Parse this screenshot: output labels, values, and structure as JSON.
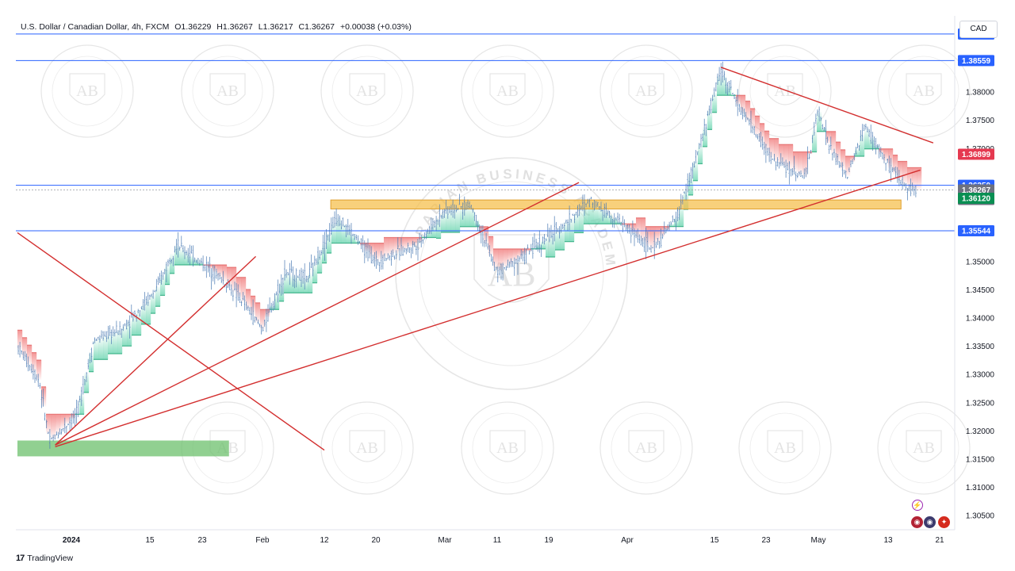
{
  "header": {
    "symbol": "U.S. Dollar / Canadian Dollar, 4h, FXCM",
    "open": "O1.36229",
    "high": "H1.36267",
    "low": "L1.36217",
    "close": "C1.36267",
    "change": "+0.00038 (+0.03%)"
  },
  "currency_button": "CAD",
  "footer": {
    "logo": "17",
    "brand": "TradingView"
  },
  "watermark": {
    "text": "ARABIAN BUSINESS ACADEMY",
    "initials": "AB"
  },
  "colors": {
    "level_line": "#2962ff",
    "trendline": "#d32f2f",
    "support_zone": "#6cc06c",
    "resistance_zone": "#f6c04f",
    "candle": "#4a7ab3",
    "cloud_up": "#7ad9b8",
    "cloud_down": "#f28a8a",
    "price_label_blue": "#2962ff",
    "price_label_red": "#e53950",
    "price_label_green": "#0a8f53",
    "price_label_gray": "#6d7180"
  },
  "chart_data": {
    "type": "line",
    "title": "U.S. Dollar / Canadian Dollar, 4h, FXCM",
    "timeframe": "4h",
    "yscale": "linear",
    "ylim": [
      1.3025,
      1.3935
    ],
    "grid": false,
    "x_ticks": [
      "2024",
      "15",
      "23",
      "Feb",
      "12",
      "20",
      "Mar",
      "11",
      "19",
      "Apr",
      "15",
      "23",
      "May",
      "13",
      "21"
    ],
    "y_ticks": [
      "1.38000",
      "1.37500",
      "1.37000",
      "1.35000",
      "1.34500",
      "1.34000",
      "1.33500",
      "1.33000",
      "1.32500",
      "1.32000",
      "1.31500",
      "1.31000",
      "1.30500"
    ],
    "price_path": [
      {
        "date": "2023-12-22",
        "close": 1.335
      },
      {
        "date": "2023-12-26",
        "close": 1.329
      },
      {
        "date": "2023-12-28",
        "close": 1.318
      },
      {
        "date": "2024-01-02",
        "close": 1.323
      },
      {
        "date": "2024-01-05",
        "close": 1.336
      },
      {
        "date": "2024-01-10",
        "close": 1.338
      },
      {
        "date": "2024-01-16",
        "close": 1.345
      },
      {
        "date": "2024-01-19",
        "close": 1.353
      },
      {
        "date": "2024-01-25",
        "close": 1.348
      },
      {
        "date": "2024-01-29",
        "close": 1.343
      },
      {
        "date": "2024-02-01",
        "close": 1.338
      },
      {
        "date": "2024-02-05",
        "close": 1.348
      },
      {
        "date": "2024-02-09",
        "close": 1.347
      },
      {
        "date": "2024-02-14",
        "close": 1.358
      },
      {
        "date": "2024-02-20",
        "close": 1.35
      },
      {
        "date": "2024-02-26",
        "close": 1.353
      },
      {
        "date": "2024-03-01",
        "close": 1.359
      },
      {
        "date": "2024-03-06",
        "close": 1.36
      },
      {
        "date": "2024-03-11",
        "close": 1.348
      },
      {
        "date": "2024-03-15",
        "close": 1.351
      },
      {
        "date": "2024-03-21",
        "close": 1.356
      },
      {
        "date": "2024-03-26",
        "close": 1.361
      },
      {
        "date": "2024-04-01",
        "close": 1.356
      },
      {
        "date": "2024-04-05",
        "close": 1.352
      },
      {
        "date": "2024-04-09",
        "close": 1.358
      },
      {
        "date": "2024-04-12",
        "close": 1.368
      },
      {
        "date": "2024-04-16",
        "close": 1.384
      },
      {
        "date": "2024-04-19",
        "close": 1.377
      },
      {
        "date": "2024-04-24",
        "close": 1.368
      },
      {
        "date": "2024-04-29",
        "close": 1.365
      },
      {
        "date": "2024-05-01",
        "close": 1.377
      },
      {
        "date": "2024-05-03",
        "close": 1.37
      },
      {
        "date": "2024-05-06",
        "close": 1.365
      },
      {
        "date": "2024-05-09",
        "close": 1.374
      },
      {
        "date": "2024-05-13",
        "close": 1.367
      },
      {
        "date": "2024-05-15",
        "close": 1.364
      },
      {
        "date": "2024-05-17",
        "close": 1.36267
      }
    ],
    "horizontal_levels": [
      {
        "value": 1.39028,
        "label": "1.39028",
        "color": "blue"
      },
      {
        "value": 1.38559,
        "label": "1.38559",
        "color": "blue"
      },
      {
        "value": 1.3635,
        "label": "1.36350",
        "color": "blue"
      },
      {
        "value": 1.35544,
        "label": "1.35544",
        "color": "blue"
      }
    ],
    "price_labels": [
      {
        "value": 1.36899,
        "label": "1.36899",
        "color": "red"
      },
      {
        "value": 1.36267,
        "label": "1.36267",
        "countdown": "03:31:35",
        "color": "gray"
      },
      {
        "value": 1.3612,
        "label": "1.36120",
        "color": "green"
      }
    ],
    "zones": [
      {
        "type": "support",
        "x_from": "2023-12-22",
        "x_to": "2024-01-27",
        "y_from": 1.3155,
        "y_to": 1.3183
      },
      {
        "type": "resistance",
        "x_from": "2024-02-13",
        "x_to": "2024-05-15",
        "y_from": 1.3593,
        "y_to": 1.3609
      }
    ],
    "trendlines": [
      {
        "from": {
          "date": "2023-12-22",
          "price": 1.3551
        },
        "to": {
          "date": "2024-02-12",
          "price": 1.3166
        }
      },
      {
        "from": {
          "date": "2023-12-29",
          "price": 1.3175
        },
        "to": {
          "date": "2024-01-31",
          "price": 1.3509
        }
      },
      {
        "from": {
          "date": "2023-12-29",
          "price": 1.3175
        },
        "to": {
          "date": "2024-03-24",
          "price": 1.364
        }
      },
      {
        "from": {
          "date": "2023-12-29",
          "price": 1.3172
        },
        "to": {
          "date": "2024-05-18",
          "price": 1.3662
        }
      },
      {
        "from": {
          "date": "2024-04-16",
          "price": 1.3844
        },
        "to": {
          "date": "2024-05-20",
          "price": 1.371
        }
      }
    ]
  }
}
